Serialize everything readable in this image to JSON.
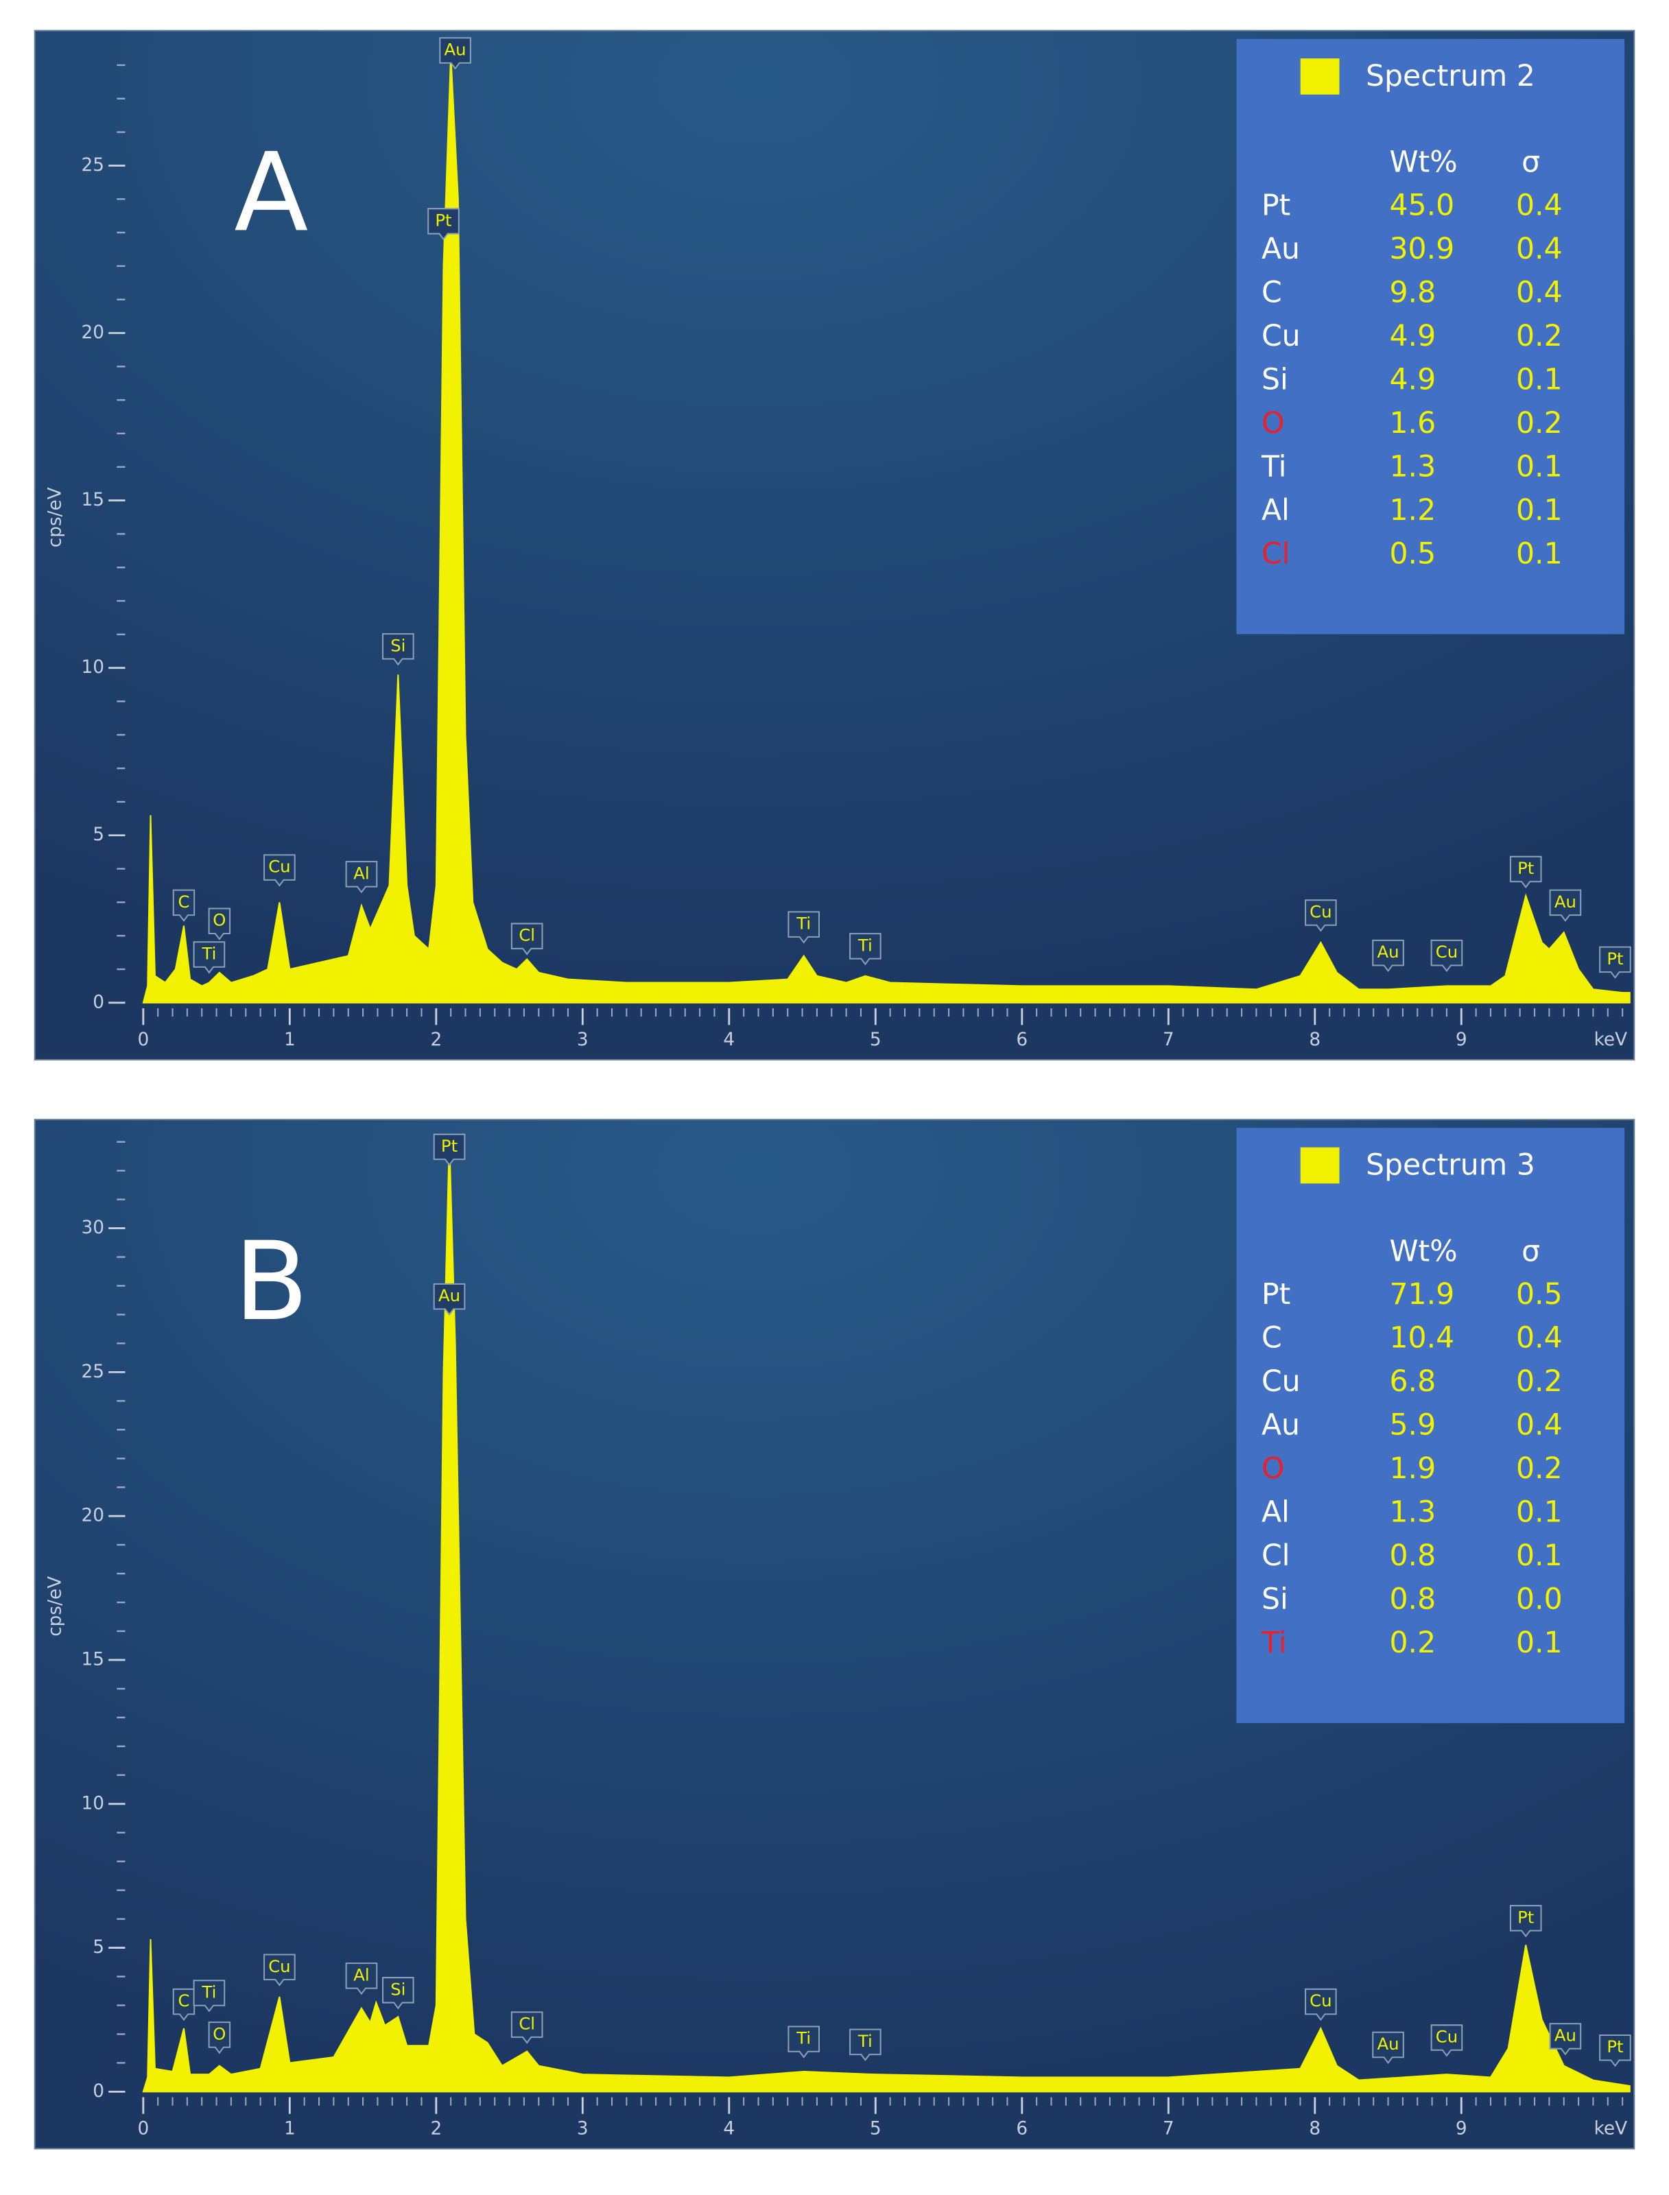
{
  "chart_data": [
    {
      "type": "area",
      "panel_label": "A",
      "y_label": "cps/eV",
      "x_label": "keV",
      "xlim": [
        0,
        10.15
      ],
      "ylim": [
        0,
        28.45
      ],
      "xticks": [
        0,
        1,
        2,
        3,
        4,
        5,
        6,
        7,
        8,
        9
      ],
      "yticks": [
        0,
        5,
        10,
        15,
        20,
        25
      ],
      "x_minor_step": 0.1,
      "y_minor_step": 1,
      "x": [
        0,
        0.03,
        0.05,
        0.08,
        0.15,
        0.22,
        0.277,
        0.32,
        0.4,
        0.45,
        0.52,
        0.6,
        0.75,
        0.85,
        0.93,
        1.0,
        1.1,
        1.2,
        1.3,
        1.4,
        1.49,
        1.55,
        1.62,
        1.68,
        1.74,
        1.8,
        1.85,
        1.95,
        2.0,
        2.05,
        2.1,
        2.15,
        2.2,
        2.25,
        2.35,
        2.45,
        2.55,
        2.62,
        2.7,
        2.9,
        3.3,
        4.0,
        4.4,
        4.51,
        4.6,
        4.8,
        4.93,
        5.1,
        6.0,
        7.0,
        7.6,
        7.9,
        8.04,
        8.15,
        8.3,
        8.5,
        8.9,
        9.2,
        9.3,
        9.44,
        9.55,
        9.6,
        9.7,
        9.8,
        9.9,
        10.1,
        10.15
      ],
      "series": [
        {
          "name": "Spectrum 2",
          "color": "#f2f200",
          "values": [
            0,
            0.5,
            5.6,
            0.8,
            0.6,
            1.0,
            2.3,
            0.7,
            0.5,
            0.6,
            0.9,
            0.6,
            0.8,
            1.0,
            3.0,
            1.0,
            1.1,
            1.2,
            1.3,
            1.4,
            2.9,
            2.2,
            2.9,
            3.5,
            9.8,
            3.5,
            2.0,
            1.6,
            3.5,
            22,
            28.3,
            24,
            8,
            3,
            1.6,
            1.2,
            1.0,
            1.3,
            0.9,
            0.7,
            0.6,
            0.6,
            0.7,
            1.4,
            0.8,
            0.6,
            0.8,
            0.6,
            0.5,
            0.5,
            0.4,
            0.8,
            1.8,
            0.9,
            0.4,
            0.4,
            0.5,
            0.5,
            0.8,
            3.2,
            1.8,
            1.6,
            2.1,
            1.0,
            0.4,
            0.3,
            0.3
          ]
        }
      ],
      "annotations": [
        {
          "text": "Au",
          "x": 2.13,
          "y": 27.9
        },
        {
          "text": "Pt",
          "x": 2.05,
          "y": 22.8
        },
        {
          "text": "Si",
          "x": 1.74,
          "y": 10.1
        },
        {
          "text": "Al",
          "x": 1.49,
          "y": 3.3
        },
        {
          "text": "Cu",
          "x": 0.93,
          "y": 3.5
        },
        {
          "text": "C",
          "x": 0.277,
          "y": 2.45
        },
        {
          "text": "O",
          "x": 0.52,
          "y": 1.9
        },
        {
          "text": "Ti",
          "x": 0.45,
          "y": 0.9
        },
        {
          "text": "Cl",
          "x": 2.62,
          "y": 1.45
        },
        {
          "text": "Ti",
          "x": 4.51,
          "y": 1.8
        },
        {
          "text": "Ti",
          "x": 4.93,
          "y": 1.15
        },
        {
          "text": "Cu",
          "x": 8.04,
          "y": 2.15
        },
        {
          "text": "Au",
          "x": 8.5,
          "y": 0.95
        },
        {
          "text": "Cu",
          "x": 8.9,
          "y": 0.95
        },
        {
          "text": "Pt",
          "x": 9.44,
          "y": 3.45
        },
        {
          "text": "Au",
          "x": 9.71,
          "y": 2.45
        },
        {
          "text": "Pt",
          "x": 10.05,
          "y": 0.75
        }
      ],
      "table": {
        "columns": [
          "Wt%",
          "σ"
        ],
        "rows": [
          {
            "element": "Pt",
            "color": "#ffffff",
            "wt": "45.0",
            "sigma": "0.4"
          },
          {
            "element": "Au",
            "color": "#ffffff",
            "wt": "30.9",
            "sigma": "0.4"
          },
          {
            "element": "C",
            "color": "#ffffff",
            "wt": "9.8",
            "sigma": "0.4"
          },
          {
            "element": "Cu",
            "color": "#ffffff",
            "wt": "4.9",
            "sigma": "0.2"
          },
          {
            "element": "Si",
            "color": "#ffffff",
            "wt": "4.9",
            "sigma": "0.1"
          },
          {
            "element": "O",
            "color": "#e8202a",
            "wt": "1.6",
            "sigma": "0.2"
          },
          {
            "element": "Ti",
            "color": "#ffffff",
            "wt": "1.3",
            "sigma": "0.1"
          },
          {
            "element": "Al",
            "color": "#ffffff",
            "wt": "1.2",
            "sigma": "0.1"
          },
          {
            "element": "Cl",
            "color": "#e8202a",
            "wt": "0.5",
            "sigma": "0.1"
          }
        ]
      }
    },
    {
      "type": "area",
      "panel_label": "B",
      "y_label": "cps/eV",
      "x_label": "keV",
      "xlim": [
        0,
        10.15
      ],
      "ylim": [
        0,
        33.1
      ],
      "xticks": [
        0,
        1,
        2,
        3,
        4,
        5,
        6,
        7,
        8,
        9
      ],
      "yticks": [
        0,
        5,
        10,
        15,
        20,
        25,
        30
      ],
      "x_minor_step": 0.1,
      "y_minor_step": 1,
      "x": [
        0,
        0.03,
        0.05,
        0.08,
        0.2,
        0.277,
        0.32,
        0.45,
        0.52,
        0.6,
        0.8,
        0.93,
        1.0,
        1.3,
        1.49,
        1.55,
        1.59,
        1.65,
        1.74,
        1.8,
        1.95,
        2.0,
        2.05,
        2.09,
        2.13,
        2.2,
        2.26,
        2.35,
        2.45,
        2.62,
        2.7,
        3.0,
        4.0,
        4.51,
        5.0,
        6.0,
        7.0,
        7.9,
        8.04,
        8.15,
        8.3,
        8.9,
        9.2,
        9.32,
        9.44,
        9.55,
        9.7,
        9.9,
        10.15
      ],
      "series": [
        {
          "name": "Spectrum 3",
          "color": "#f2f200",
          "values": [
            0,
            0.5,
            5.3,
            0.8,
            0.7,
            2.2,
            0.6,
            0.6,
            0.9,
            0.6,
            0.8,
            3.3,
            1.0,
            1.2,
            2.9,
            2.4,
            3.1,
            2.3,
            2.6,
            1.6,
            1.6,
            3,
            25,
            33.1,
            26,
            6,
            2,
            1.7,
            0.9,
            1.4,
            0.9,
            0.6,
            0.5,
            0.7,
            0.6,
            0.5,
            0.5,
            0.8,
            2.2,
            0.9,
            0.4,
            0.6,
            0.5,
            1.5,
            5.1,
            2.5,
            0.9,
            0.4,
            0.2
          ]
        }
      ],
      "annotations": [
        {
          "text": "Pt",
          "x": 2.09,
          "y": 32.2
        },
        {
          "text": "Au",
          "x": 2.09,
          "y": 27.0
        },
        {
          "text": "Cu",
          "x": 0.93,
          "y": 3.7
        },
        {
          "text": "C",
          "x": 0.277,
          "y": 2.5
        },
        {
          "text": "Ti",
          "x": 0.45,
          "y": 2.8
        },
        {
          "text": "O",
          "x": 0.52,
          "y": 1.35
        },
        {
          "text": "Al",
          "x": 1.49,
          "y": 3.4
        },
        {
          "text": "Si",
          "x": 1.74,
          "y": 2.9
        },
        {
          "text": "Cl",
          "x": 2.62,
          "y": 1.7
        },
        {
          "text": "Ti",
          "x": 4.51,
          "y": 1.2
        },
        {
          "text": "Ti",
          "x": 4.93,
          "y": 1.1
        },
        {
          "text": "Cu",
          "x": 8.04,
          "y": 2.5
        },
        {
          "text": "Au",
          "x": 8.5,
          "y": 1.0
        },
        {
          "text": "Cu",
          "x": 8.9,
          "y": 1.25
        },
        {
          "text": "Pt",
          "x": 9.44,
          "y": 5.4
        },
        {
          "text": "Au",
          "x": 9.71,
          "y": 1.3
        },
        {
          "text": "Pt",
          "x": 10.05,
          "y": 0.9
        }
      ],
      "table": {
        "columns": [
          "Wt%",
          "σ"
        ],
        "rows": [
          {
            "element": "Pt",
            "color": "#ffffff",
            "wt": "71.9",
            "sigma": "0.5"
          },
          {
            "element": "C",
            "color": "#ffffff",
            "wt": "10.4",
            "sigma": "0.4"
          },
          {
            "element": "Cu",
            "color": "#ffffff",
            "wt": "6.8",
            "sigma": "0.2"
          },
          {
            "element": "Au",
            "color": "#ffffff",
            "wt": "5.9",
            "sigma": "0.4"
          },
          {
            "element": "O",
            "color": "#e8202a",
            "wt": "1.9",
            "sigma": "0.2"
          },
          {
            "element": "Al",
            "color": "#ffffff",
            "wt": "1.3",
            "sigma": "0.1"
          },
          {
            "element": "Cl",
            "color": "#ffffff",
            "wt": "0.8",
            "sigma": "0.1"
          },
          {
            "element": "Si",
            "color": "#ffffff",
            "wt": "0.8",
            "sigma": "0.0"
          },
          {
            "element": "Ti",
            "color": "#e8202a",
            "wt": "0.2",
            "sigma": "0.1"
          }
        ]
      }
    }
  ]
}
